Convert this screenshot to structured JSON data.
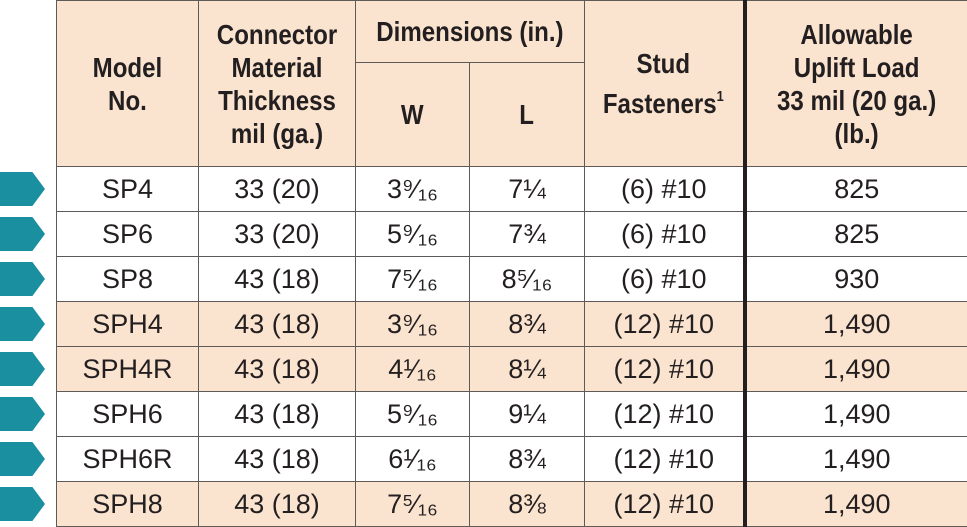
{
  "table": {
    "headers": {
      "model": [
        "Model",
        "No."
      ],
      "thickness": [
        "Connector",
        "Material",
        "Thickness",
        "mil (ga.)"
      ],
      "dimensions": "Dimensions (in.)",
      "dim_w": "W",
      "dim_l": "L",
      "fasteners": [
        "Stud",
        "Fasteners"
      ],
      "fasteners_footnote": "1",
      "load": [
        "Allowable",
        "Uplift Load",
        "33 mil (20 ga.)",
        "(lb.)"
      ]
    },
    "rows": [
      {
        "model": "SP4",
        "thickness": "33 (20)",
        "w": "3⁹⁄₁₆",
        "l": "7¼",
        "fasteners": "(6) #10",
        "load": "825",
        "shaded": false
      },
      {
        "model": "SP6",
        "thickness": "33 (20)",
        "w": "5⁹⁄₁₆",
        "l": "7¾",
        "fasteners": "(6) #10",
        "load": "825",
        "shaded": false
      },
      {
        "model": "SP8",
        "thickness": "43 (18)",
        "w": "7⁵⁄₁₆",
        "l": "8⁵⁄₁₆",
        "fasteners": "(6) #10",
        "load": "930",
        "shaded": false
      },
      {
        "model": "SPH4",
        "thickness": "43 (18)",
        "w": "3⁹⁄₁₆",
        "l": "8¾",
        "fasteners": "(12) #10",
        "load": "1,490",
        "shaded": true
      },
      {
        "model": "SPH4R",
        "thickness": "43 (18)",
        "w": "4¹⁄₁₆",
        "l": "8¼",
        "fasteners": "(12) #10",
        "load": "1,490",
        "shaded": true
      },
      {
        "model": "SPH6",
        "thickness": "43 (18)",
        "w": "5⁹⁄₁₆",
        "l": "9¼",
        "fasteners": "(12) #10",
        "load": "1,490",
        "shaded": false
      },
      {
        "model": "SPH6R",
        "thickness": "43 (18)",
        "w": "6¹⁄₁₆",
        "l": "8¾",
        "fasteners": "(12) #10",
        "load": "1,490",
        "shaded": false
      },
      {
        "model": "SPH8",
        "thickness": "43 (18)",
        "w": "7⁵⁄₁₆",
        "l": "8⅜",
        "fasteners": "(12) #10",
        "load": "1,490",
        "shaded": true
      }
    ]
  },
  "colors": {
    "header_fill": "#fbe4cf",
    "row_highlight": "#fbe4cf",
    "arrow": "#1a8fa0",
    "text": "#231f20"
  },
  "icons": {
    "row_marker": "arrow-right-icon"
  }
}
